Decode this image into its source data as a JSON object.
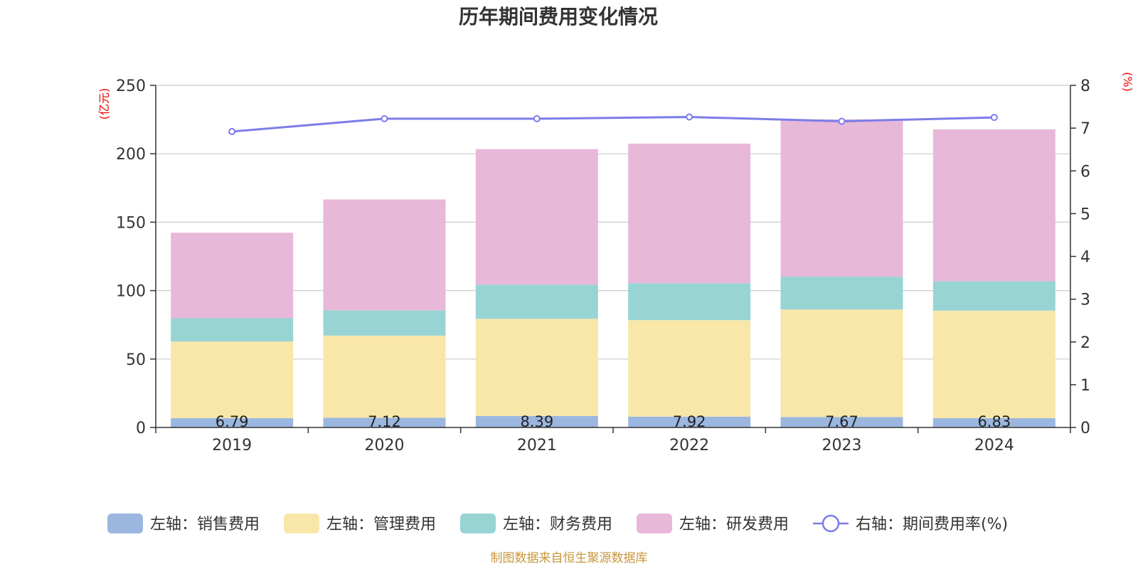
{
  "chart_data": {
    "type": "bar",
    "stacked": true,
    "title": "历年期间费用变化情况",
    "categories": [
      "2019",
      "2020",
      "2021",
      "2022",
      "2023",
      "2024"
    ],
    "left_axis": {
      "unit": "(亿元)",
      "min": 0,
      "max": 250,
      "ticks": [
        0,
        50,
        100,
        150,
        200,
        250
      ]
    },
    "right_axis": {
      "unit": "(%)",
      "min": 0,
      "max": 8,
      "ticks": [
        0,
        1,
        2,
        3,
        4,
        5,
        6,
        7,
        8
      ]
    },
    "series": [
      {
        "name": "左轴：销售费用",
        "axis": "left",
        "type": "bar",
        "color": "#9bb7e0",
        "values": [
          6.79,
          7.12,
          8.39,
          7.92,
          7.67,
          6.83
        ],
        "labels": [
          "6.79",
          "7.12",
          "8.39",
          "7.92",
          "7.67",
          "6.83"
        ]
      },
      {
        "name": "左轴：管理费用",
        "axis": "left",
        "type": "bar",
        "color": "#f8e7a9",
        "values": [
          56,
          60,
          71,
          70.5,
          78.5,
          78.5
        ]
      },
      {
        "name": "左轴：财务费用",
        "axis": "left",
        "type": "bar",
        "color": "#98d4d4",
        "values": [
          17,
          18.5,
          25,
          27,
          24,
          21.5
        ]
      },
      {
        "name": "左轴：研发费用",
        "axis": "left",
        "type": "bar",
        "color": "#e8b8d9",
        "values": [
          62.5,
          81,
          99,
          102,
          115,
          111
        ]
      },
      {
        "name": "右轴：期间费用率(%)",
        "axis": "right",
        "type": "line",
        "color": "#7b7de8",
        "values": [
          6.92,
          7.22,
          7.22,
          7.26,
          7.16,
          7.25
        ]
      }
    ],
    "grid": true,
    "legend_position": "bottom"
  },
  "footer": {
    "source": "制图数据来自恒生聚源数据库"
  }
}
